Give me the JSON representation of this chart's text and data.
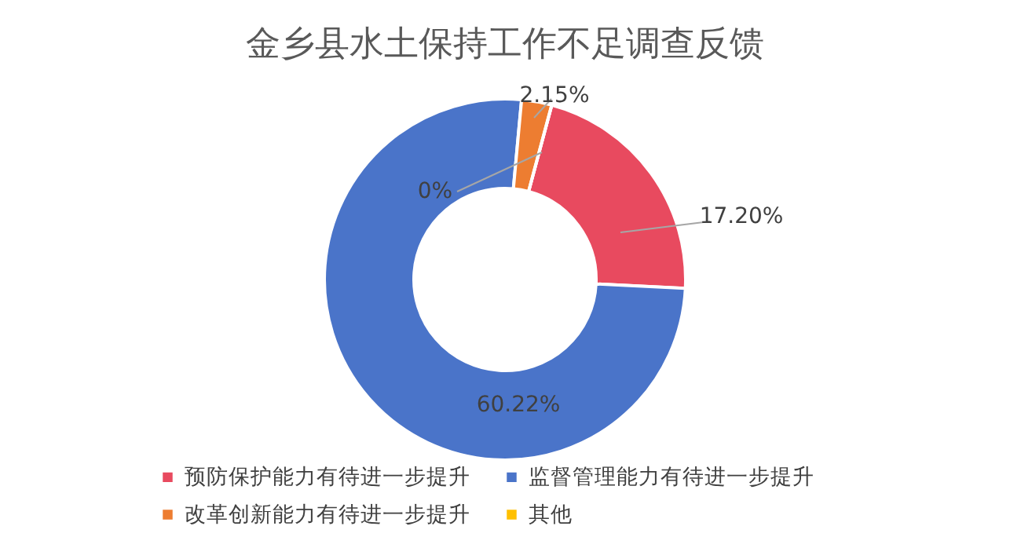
{
  "chart_data": {
    "type": "donut",
    "title": "金乡县水土保持工作不足调查反馈",
    "categories": [
      "预防保护能力有待进一步提升",
      "监督管理能力有待进一步提升",
      "改革创新能力有待进一步提升",
      "其他"
    ],
    "values": [
      17.2,
      60.22,
      2.15,
      0
    ],
    "value_labels": [
      "17.20%",
      "60.22%",
      "2.15%",
      "0%"
    ],
    "colors": [
      "#e84a5f",
      "#4a74c9",
      "#ed7d31",
      "#ffc000"
    ],
    "legend": "bottom"
  }
}
